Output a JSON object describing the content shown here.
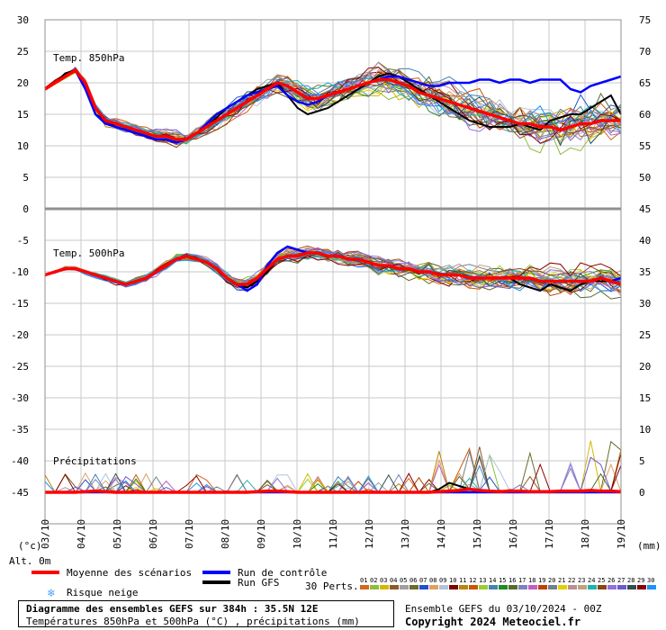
{
  "chart_data": {
    "type": "line",
    "x_labels": [
      "03/10",
      "04/10",
      "05/10",
      "06/10",
      "07/10",
      "08/10",
      "09/10",
      "10/10",
      "11/10",
      "12/10",
      "13/10",
      "14/10",
      "15/10",
      "16/10",
      "17/10",
      "18/10",
      "19/10"
    ],
    "left_axis": {
      "ticks": [
        30,
        25,
        20,
        15,
        10,
        5,
        0,
        -5,
        -10,
        -15,
        -20,
        -25,
        -30,
        -35,
        -40,
        -45
      ],
      "unit": "(°c)"
    },
    "right_axis": {
      "ticks": [
        75,
        70,
        65,
        60,
        55,
        50,
        45,
        40,
        35,
        30,
        25,
        20,
        15,
        10,
        5,
        0
      ],
      "unit": "(mm)"
    },
    "alt_label": "Alt. 0m",
    "panels": [
      {
        "name": "Temp. 850hPa",
        "ylim": [
          0,
          30
        ],
        "mean": [
          19,
          20,
          21,
          22,
          20,
          16,
          14,
          13.5,
          13,
          12.5,
          12,
          11.5,
          11.5,
          11,
          11,
          12,
          13,
          14,
          15,
          16,
          17,
          18,
          19,
          20,
          19.5,
          18.5,
          17.5,
          17.5,
          18,
          18.5,
          19,
          19.5,
          20,
          20.5,
          20.5,
          20,
          19.5,
          18.5,
          18,
          17.5,
          17,
          16.5,
          16,
          15.5,
          15,
          14.5,
          14,
          13.5,
          13.5,
          13,
          13,
          12.5,
          13,
          13.5,
          13.5,
          14,
          14,
          14
        ],
        "control": [
          19,
          20,
          21,
          22,
          19,
          15,
          13.5,
          13,
          12.5,
          12,
          11.5,
          11,
          11,
          10.5,
          11,
          12,
          13.5,
          15,
          16,
          17,
          18,
          18.5,
          19,
          19.5,
          18,
          17,
          16.5,
          17,
          18,
          18.5,
          19,
          19.5,
          20,
          20.5,
          21,
          21,
          20.5,
          20,
          19.5,
          19.5,
          20,
          20,
          20,
          20.5,
          20.5,
          20,
          20.5,
          20.5,
          20,
          20.5,
          20.5,
          20.5,
          19,
          18.5,
          19.5,
          20,
          20.5,
          21
        ],
        "gfs": [
          19,
          20,
          21.5,
          22,
          19,
          15,
          14,
          13,
          12.5,
          12,
          11.5,
          11,
          11,
          10.5,
          11,
          12,
          13,
          14.5,
          16,
          17,
          18,
          19,
          19.5,
          20,
          18,
          16,
          15,
          15.5,
          16,
          17,
          18,
          19,
          20,
          21,
          21.5,
          21,
          20,
          19,
          18,
          17,
          16,
          15,
          14,
          13.5,
          13,
          13,
          13,
          13.5,
          13,
          12.5,
          14,
          14.5,
          15,
          15,
          16,
          17,
          18,
          15
        ]
      },
      {
        "name": "Temp. 500hPa",
        "ylim": [
          -20,
          -5
        ],
        "mean": [
          -10.5,
          -10,
          -9.5,
          -9.5,
          -10,
          -10.5,
          -11,
          -11.5,
          -12,
          -11.5,
          -11,
          -10,
          -9,
          -8,
          -7.5,
          -8,
          -8.5,
          -9.5,
          -11,
          -12,
          -12,
          -11,
          -9.5,
          -8,
          -7.5,
          -7.5,
          -7,
          -7,
          -7.5,
          -7.5,
          -8,
          -8,
          -8.5,
          -9,
          -9,
          -9.5,
          -9.5,
          -10,
          -10,
          -10.5,
          -10.5,
          -10.5,
          -11,
          -11,
          -11,
          -11,
          -11,
          -11,
          -11,
          -11.5,
          -11.5,
          -11.5,
          -11.5,
          -11.5,
          -11.5,
          -11,
          -11.5,
          -12
        ],
        "control": [
          -10.5,
          -10,
          -9.5,
          -9.5,
          -10,
          -10.5,
          -11,
          -11.5,
          -12,
          -11.5,
          -11,
          -10,
          -9,
          -8,
          -7.5,
          -8,
          -8.5,
          -9.5,
          -11,
          -12,
          -13,
          -12,
          -9,
          -7,
          -6,
          -6.5,
          -7,
          -7,
          -7.5,
          -7.5,
          -8,
          -8,
          -8.5,
          -9,
          -9,
          -9.5,
          -9.5,
          -10,
          -10,
          -10.5,
          -10.5,
          -10.5,
          -11,
          -11,
          -11,
          -11,
          -11,
          -11,
          -11,
          -11.5,
          -11.5,
          -11.5,
          -11.5,
          -11.5,
          -11.5,
          -11,
          -11.5,
          -11
        ],
        "gfs": [
          -10.5,
          -10,
          -9.5,
          -9.5,
          -10,
          -10.5,
          -11,
          -11.5,
          -12,
          -11.5,
          -11,
          -10,
          -9,
          -8,
          -7.5,
          -8,
          -8.5,
          -9.5,
          -11,
          -12,
          -12.5,
          -11.5,
          -10,
          -8,
          -7.5,
          -7.5,
          -7,
          -7,
          -7.5,
          -7.5,
          -8,
          -8,
          -8.5,
          -9,
          -9,
          -9.5,
          -9.5,
          -10,
          -10,
          -10.5,
          -10.5,
          -10.5,
          -11,
          -11,
          -11,
          -11,
          -11,
          -12,
          -12.5,
          -13,
          -12,
          -12.5,
          -13,
          -12,
          -11.5,
          -11.5,
          -11.5,
          -12
        ]
      },
      {
        "name": "Précipitations",
        "ylim": [
          0,
          15
        ],
        "mean": [
          0,
          0,
          0,
          0,
          0.1,
          0.2,
          0.1,
          0,
          0,
          0,
          0,
          0,
          0,
          0,
          0,
          0,
          0,
          0,
          0,
          0,
          0,
          0.1,
          0.2,
          0.2,
          0.1,
          0,
          0,
          0,
          0,
          0,
          0,
          0,
          0,
          0,
          0,
          0,
          0,
          0,
          0,
          0.1,
          0.2,
          0.3,
          0.5,
          0.3,
          0.2,
          0.1,
          0.2,
          0.2,
          0.1,
          0.1,
          0.1,
          0.2,
          0.2,
          0.2,
          0.3,
          0.2,
          0.2,
          0.1
        ],
        "control": [
          0,
          0,
          0,
          0,
          0,
          0,
          0,
          0,
          0,
          0,
          0,
          0,
          0,
          0,
          0,
          0,
          0,
          0,
          0,
          0,
          0,
          0,
          0,
          0,
          0,
          0,
          0,
          0,
          0,
          0,
          0,
          0,
          0,
          0,
          0,
          0,
          0,
          0,
          0,
          0,
          0,
          0,
          0,
          0,
          0,
          0,
          0,
          0,
          0,
          0,
          0,
          0,
          0,
          0,
          0,
          0,
          0,
          0
        ],
        "gfs": [
          0,
          0,
          0,
          0,
          0,
          0,
          0,
          0,
          0,
          0,
          0,
          0,
          0,
          0,
          0,
          0,
          0,
          0,
          0,
          0,
          0,
          0,
          0,
          0,
          0,
          0,
          0,
          0,
          0,
          0,
          0,
          0,
          0,
          0,
          0,
          0,
          0,
          0,
          0,
          0.5,
          1.5,
          1,
          0.5,
          0,
          0,
          0,
          0,
          0,
          0,
          0,
          0,
          0,
          0,
          0,
          0,
          0,
          0,
          0
        ]
      }
    ],
    "perturbation_codes": [
      "01",
      "02",
      "03",
      "04",
      "05",
      "06",
      "07",
      "08",
      "09",
      "10",
      "11",
      "12",
      "13",
      "14",
      "15",
      "16",
      "17",
      "18",
      "19",
      "20",
      "21",
      "22",
      "23",
      "24",
      "25",
      "26",
      "27",
      "28",
      "29",
      "30"
    ],
    "perturbation_colors": [
      "#d2691e",
      "#8fbc3f",
      "#d4b800",
      "#8b5a2b",
      "#a0a0a0",
      "#6b6b2b",
      "#2050d0",
      "#e0a060",
      "#b0c4de",
      "#800000",
      "#b8860b",
      "#cc5500",
      "#9acd32",
      "#4682b4",
      "#228b22",
      "#556b2f",
      "#8080c0",
      "#bf60bf",
      "#c04000",
      "#708090",
      "#e0d000",
      "#bc8f8f",
      "#c0a080",
      "#20b2aa",
      "#8b4513",
      "#9370db",
      "#6a5acd",
      "#2f4f4f",
      "#8b0000",
      "#1e90ff"
    ]
  },
  "legend": {
    "mean_label": "Moyenne des scénarios",
    "control_label": "Run de contrôle",
    "gfs_label": "Run GFS",
    "snow_label": "Risque neige",
    "perts_label": "30 Perts.",
    "mean_color": "#ff0000",
    "control_color": "#0000ff",
    "gfs_color": "#000000",
    "snow_color": "#4fa8ff"
  },
  "footer": {
    "title": "Diagramme des ensembles GEFS sur 384h : 35.5N 12E",
    "subtitle": "Températures 850hPa et 500hPa (°C) , précipitations (mm)",
    "run_info": "Ensemble GEFS du 03/10/2024 - 00Z",
    "copyright": "Copyright 2024 Meteociel.fr"
  }
}
